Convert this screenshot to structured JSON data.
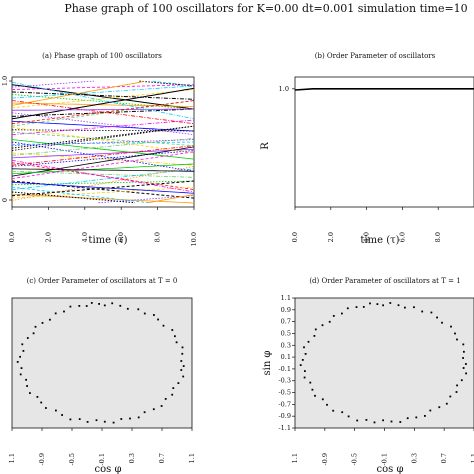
{
  "figure": {
    "title": "Phase graph of 100 oscillators for K=0.00 dt=0.001 simulation time=10"
  },
  "chart_data": [
    {
      "id": "a",
      "type": "line",
      "title": "(a) Phase graph of 100 oscillators",
      "xlabel": "time (τ)",
      "ylabel": "",
      "xlim": [
        0,
        10
      ],
      "ylim": [
        0,
        1
      ],
      "x_ticks": [
        "0.0",
        "2.0",
        "4.0",
        "6.0",
        "8.0",
        "10.0"
      ],
      "y_ticks": [
        "0",
        "1.0"
      ],
      "series_count": 100,
      "series_colors": [
        "#000000",
        "#ff00ff",
        "#00cc00",
        "#00ccff",
        "#ff9900",
        "#ffcc00",
        "#9933ff",
        "#ff0000",
        "#0000ff",
        "#66cc66"
      ],
      "series": [
        {
          "phase0": 0.97,
          "slope": -0.02
        },
        {
          "phase0": 0.93,
          "slope": 0.004
        },
        {
          "phase0": 0.89,
          "slope": -0.012
        },
        {
          "phase0": 0.86,
          "slope": 0.01
        },
        {
          "phase0": 0.82,
          "slope": -0.003
        },
        {
          "phase0": 0.78,
          "slope": 0.015
        },
        {
          "phase0": 0.74,
          "slope": -0.018
        },
        {
          "phase0": 0.71,
          "slope": 0.006
        },
        {
          "phase0": 0.67,
          "slope": -0.008
        },
        {
          "phase0": 0.63,
          "slope": 0.021
        },
        {
          "phase0": 0.6,
          "slope": -0.001
        },
        {
          "phase0": 0.56,
          "slope": 0.012
        },
        {
          "phase0": 0.52,
          "slope": -0.016
        },
        {
          "phase0": 0.48,
          "slope": 0.002
        },
        {
          "phase0": 0.45,
          "slope": 0.018
        },
        {
          "phase0": 0.41,
          "slope": -0.01
        },
        {
          "phase0": 0.37,
          "slope": 0.007
        },
        {
          "phase0": 0.33,
          "slope": -0.022
        },
        {
          "phase0": 0.3,
          "slope": 0.013
        },
        {
          "phase0": 0.26,
          "slope": -0.005
        },
        {
          "phase0": 0.22,
          "slope": 0.024
        },
        {
          "phase0": 0.18,
          "slope": -0.014
        },
        {
          "phase0": 0.15,
          "slope": 0.003
        },
        {
          "phase0": 0.11,
          "slope": 0.017
        },
        {
          "phase0": 0.07,
          "slope": -0.007
        },
        {
          "phase0": 0.04,
          "slope": 0.009
        },
        {
          "phase0": 0.95,
          "slope": 0.011
        },
        {
          "phase0": 0.84,
          "slope": -0.019
        },
        {
          "phase0": 0.69,
          "slope": 0.025
        },
        {
          "phase0": 0.58,
          "slope": -0.011
        },
        {
          "phase0": 0.43,
          "slope": 0.02
        },
        {
          "phase0": 0.35,
          "slope": -0.026
        },
        {
          "phase0": 0.24,
          "slope": 0.008
        },
        {
          "phase0": 0.13,
          "slope": -0.017
        },
        {
          "phase0": 0.02,
          "slope": 0.028
        },
        {
          "phase0": 0.91,
          "slope": -0.006
        },
        {
          "phase0": 0.76,
          "slope": 0.001
        },
        {
          "phase0": 0.65,
          "slope": 0.019
        },
        {
          "phase0": 0.5,
          "slope": -0.024
        },
        {
          "phase0": 0.39,
          "slope": 0.014
        },
        {
          "phase0": 0.28,
          "slope": -0.002
        },
        {
          "phase0": 0.2,
          "slope": 0.022
        },
        {
          "phase0": 0.09,
          "slope": -0.013
        },
        {
          "phase0": 0.99,
          "slope": -0.03
        },
        {
          "phase0": 0.8,
          "slope": 0.027
        },
        {
          "phase0": 0.62,
          "slope": -0.021
        },
        {
          "phase0": 0.47,
          "slope": 0.005
        },
        {
          "phase0": 0.31,
          "slope": 0.016
        },
        {
          "phase0": 0.17,
          "slope": -0.009
        },
        {
          "phase0": 0.06,
          "slope": 0.012
        }
      ]
    },
    {
      "id": "b",
      "type": "line",
      "title": "(b) Order Parameter of oscillators",
      "xlabel": "time (τ)",
      "ylabel": "R",
      "xlim": [
        0,
        10
      ],
      "ylim": [
        0,
        1.1
      ],
      "x_ticks": [
        "0.0",
        "2.0",
        "4.0",
        "6.0",
        "8.0"
      ],
      "y_ticks": [
        "1.0"
      ],
      "series": [
        {
          "x": [
            0,
            1,
            2,
            3,
            4,
            5,
            6,
            7,
            8,
            9,
            10
          ],
          "y": [
            0.99,
            1.0,
            1.0,
            1.0,
            1.0,
            1.0,
            1.0,
            1.0,
            1.0,
            1.0,
            1.0
          ]
        }
      ]
    },
    {
      "id": "c",
      "type": "scatter",
      "title": "(c) Order Parameter of oscillators at T = 0",
      "xlabel": "cos φ",
      "ylabel": "",
      "xlim": [
        -1.1,
        1.1
      ],
      "ylim": [
        -1.1,
        1.1
      ],
      "x_ticks": [
        "1.1",
        "-0.9",
        "-0.5",
        "-0.1",
        "0.3",
        "0.7",
        "1.1"
      ],
      "y_ticks": [
        "1.1",
        "0.9",
        "0.7",
        "0.5",
        "0.3",
        "0.1",
        "-0.1",
        "-0.3",
        "-0.5",
        "-0.7",
        "-0.9",
        "-1.1"
      ],
      "points_angles_deg": [
        2,
        9,
        15,
        21,
        27,
        33,
        40,
        47,
        52,
        58,
        64,
        71,
        77,
        83,
        88,
        92,
        97,
        101,
        106,
        112,
        118,
        124,
        131,
        137,
        143,
        149,
        155,
        162,
        168,
        174,
        179,
        185,
        191,
        197,
        203,
        210,
        216,
        222,
        228,
        235,
        241,
        248,
        254,
        260,
        266,
        272,
        278,
        284,
        290,
        296,
        302,
        309,
        315,
        322,
        328,
        334,
        340,
        347,
        353,
        357
      ]
    },
    {
      "id": "d",
      "type": "scatter",
      "title": "(d) Order Parameter of oscillators at T = 1",
      "xlabel": "cos φ",
      "ylabel": "sin φ",
      "xlim": [
        -1.1,
        1.1
      ],
      "ylim": [
        -1.1,
        1.1
      ],
      "x_ticks": [
        "1.1",
        "-0.9",
        "-0.5",
        "-0.1",
        "0.3",
        "0.7",
        "1.1"
      ],
      "y_ticks": [
        "1.1",
        "0.9",
        "0.7",
        "0.5",
        "0.3",
        "0.1",
        "-0.1",
        "-0.3",
        "-0.5",
        "-0.7",
        "-0.9",
        "-1.1"
      ],
      "points_angles_deg": [
        5,
        11,
        18,
        24,
        30,
        37,
        44,
        50,
        56,
        62,
        69,
        75,
        80,
        86,
        91,
        95,
        100,
        105,
        110,
        116,
        122,
        128,
        134,
        140,
        146,
        152,
        159,
        165,
        171,
        177,
        182,
        188,
        194,
        200,
        207,
        213,
        219,
        225,
        232,
        238,
        244,
        251,
        257,
        263,
        269,
        275,
        281,
        287,
        293,
        299,
        305,
        312,
        318,
        325,
        331,
        337,
        343,
        350,
        355,
        359
      ]
    }
  ]
}
